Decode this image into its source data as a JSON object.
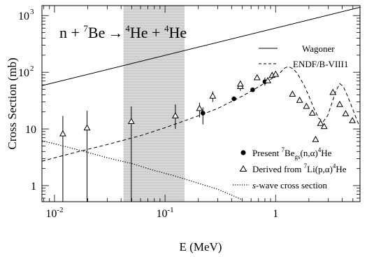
{
  "chart_data": {
    "type": "scatter",
    "title": "n + ⁷Be → ⁴He + ⁴He",
    "xlabel": "E (MeV)",
    "ylabel": "Cross Section (mb)",
    "x_scale": "log",
    "y_scale": "log",
    "xlim": [
      0.0077,
      5.8
    ],
    "ylim": [
      0.52,
      1500
    ],
    "grid": false,
    "legend_position": "right",
    "x_ticks": [
      {
        "value": 0.01,
        "base": "10",
        "exp": "-2"
      },
      {
        "value": 0.1,
        "base": "10",
        "exp": "-1"
      },
      {
        "value": 1,
        "base": "1",
        "exp": ""
      }
    ],
    "y_ticks": [
      {
        "value": 1,
        "base": "1",
        "exp": ""
      },
      {
        "value": 10,
        "base": "10",
        "exp": ""
      },
      {
        "value": 100,
        "base": "10",
        "exp": "2"
      },
      {
        "value": 1000,
        "base": "10",
        "exp": "3"
      }
    ],
    "shaded_region": {
      "x": [
        0.042,
        0.15
      ],
      "color": "#d8d8d8"
    },
    "series": [
      {
        "name": "Wagoner",
        "kind": "line",
        "style": "solid",
        "points": [
          [
            0.0077,
            58
          ],
          [
            5.8,
            1400
          ]
        ]
      },
      {
        "name": "ENDF/B-VIII1",
        "kind": "line",
        "style": "dashed",
        "points": [
          [
            0.0077,
            2.7
          ],
          [
            0.015,
            3.8
          ],
          [
            0.03,
            5.3
          ],
          [
            0.06,
            7.6
          ],
          [
            0.1,
            10.5
          ],
          [
            0.2,
            17
          ],
          [
            0.3,
            23
          ],
          [
            0.5,
            38
          ],
          [
            0.7,
            55
          ],
          [
            0.9,
            75
          ],
          [
            1.1,
            98
          ],
          [
            1.2,
            118
          ],
          [
            1.3,
            126
          ],
          [
            1.45,
            115
          ],
          [
            1.6,
            90
          ],
          [
            1.8,
            60
          ],
          [
            2.0,
            38
          ],
          [
            2.2,
            24
          ],
          [
            2.45,
            15.5
          ],
          [
            2.7,
            13.5
          ],
          [
            2.95,
            17
          ],
          [
            3.2,
            27
          ],
          [
            3.5,
            46
          ],
          [
            3.8,
            63
          ],
          [
            4.1,
            56
          ],
          [
            4.5,
            37
          ],
          [
            5.0,
            22
          ],
          [
            5.5,
            13.5
          ],
          [
            5.8,
            11
          ]
        ]
      },
      {
        "name": "Present ⁷Be_gs(n,α)⁴He",
        "kind": "points",
        "marker": "circle",
        "points": [
          {
            "x": 0.22,
            "y": 19,
            "lo": 12,
            "hi": 24
          },
          {
            "x": 0.42,
            "y": 34
          },
          {
            "x": 0.62,
            "y": 49
          },
          {
            "x": 0.8,
            "y": 68,
            "lo": 58,
            "hi": 80
          }
        ]
      },
      {
        "name": "Derived from ⁷Li(p,α)⁴He",
        "kind": "points",
        "marker": "triangle",
        "points": [
          {
            "x": 0.0119,
            "y": 8.2,
            "lo": 0.52,
            "hi": 17
          },
          {
            "x": 0.0197,
            "y": 10.4,
            "lo": 0.52,
            "hi": 21
          },
          {
            "x": 0.0495,
            "y": 13.5,
            "lo": 0.52,
            "hi": 25
          },
          {
            "x": 0.124,
            "y": 17,
            "lo": 10,
            "hi": 27
          },
          {
            "x": 0.205,
            "y": 23,
            "lo": 16,
            "hi": 29
          },
          {
            "x": 0.27,
            "y": 38,
            "lo": 30,
            "hi": 46
          },
          {
            "x": 0.48,
            "y": 56,
            "lo": 47,
            "hi": 66
          },
          {
            "x": 0.48,
            "y": 62
          },
          {
            "x": 0.68,
            "y": 80
          },
          {
            "x": 0.85,
            "y": 71
          },
          {
            "x": 0.93,
            "y": 88
          },
          {
            "x": 1.0,
            "y": 92
          },
          {
            "x": 1.42,
            "y": 41
          },
          {
            "x": 1.65,
            "y": 32
          },
          {
            "x": 1.9,
            "y": 25
          },
          {
            "x": 2.15,
            "y": 19
          },
          {
            "x": 2.3,
            "y": 6.5
          },
          {
            "x": 2.55,
            "y": 12.5
          },
          {
            "x": 2.75,
            "y": 11
          },
          {
            "x": 3.3,
            "y": 44
          },
          {
            "x": 3.8,
            "y": 27
          },
          {
            "x": 4.3,
            "y": 18.5
          },
          {
            "x": 4.95,
            "y": 14
          }
        ]
      },
      {
        "name": "s-wave cross section",
        "kind": "line",
        "style": "dotted",
        "points": [
          [
            0.0077,
            6.2
          ],
          [
            0.012,
            5.0
          ],
          [
            0.02,
            3.85
          ],
          [
            0.03,
            3.1
          ],
          [
            0.05,
            2.45
          ],
          [
            0.08,
            1.85
          ],
          [
            0.12,
            1.5
          ],
          [
            0.2,
            1.1
          ],
          [
            0.3,
            0.86
          ],
          [
            0.4,
            0.68
          ],
          [
            0.5,
            0.56
          ]
        ]
      }
    ],
    "legend": {
      "wagoner": "Wagoner",
      "endf": "ENDF/B-VIII1",
      "present_pre": "Present ",
      "present_sup1": "7",
      "present_mid": "Be",
      "present_sub": "gs",
      "present_post": "(n,α)",
      "present_sup2": "4",
      "present_end": "He",
      "derived_pre": "Derived from ",
      "derived_sup1": "7",
      "derived_mid": "Li(p,α)",
      "derived_sup2": "4",
      "derived_end": "He",
      "swave_italic": "s",
      "swave_rest": "-wave cross section"
    },
    "reaction_label": {
      "n_plus": "n + ",
      "sup1": "7",
      "be": "Be",
      "arrow": "→",
      "sup2": "4",
      "he1": "He + ",
      "sup3": "4",
      "he2": "He"
    }
  }
}
